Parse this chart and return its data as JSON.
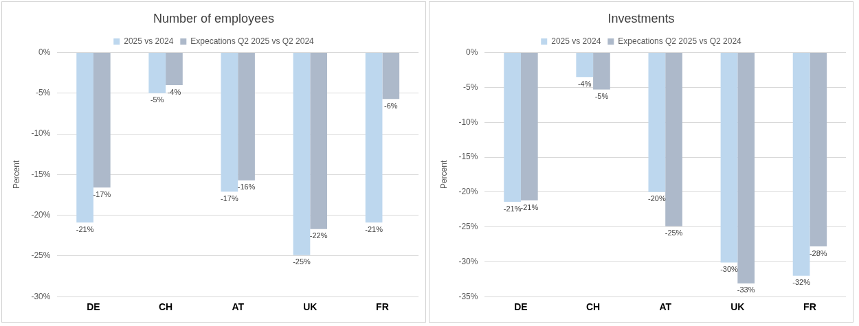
{
  "chart_data": [
    {
      "type": "bar",
      "title": "Number of employees",
      "ylabel": "Percent",
      "categories": [
        "DE",
        "CH",
        "AT",
        "UK",
        "FR"
      ],
      "series": [
        {
          "name": "2025 vs 2024",
          "color": "#bdd7ee",
          "values": [
            -20.9,
            -5.0,
            -17.1,
            -24.9,
            -20.9
          ],
          "value_labels": [
            "-21%",
            "-5%",
            "-17%",
            "-25%",
            "-21%"
          ]
        },
        {
          "name": "Expecations Q2 2025 vs Q2 2024",
          "color": "#adb9ca",
          "values": [
            -16.6,
            -4.0,
            -15.7,
            -21.7,
            -5.7
          ],
          "value_labels": [
            "-17%",
            "-4%",
            "-16%",
            "-22%",
            "-6%"
          ]
        }
      ],
      "ylim": [
        -30,
        0
      ],
      "yticks": [
        {
          "value": -30,
          "label": "-30%"
        },
        {
          "value": -25,
          "label": "-25%"
        },
        {
          "value": -20,
          "label": "-20%"
        },
        {
          "value": -15,
          "label": "-15%"
        },
        {
          "value": -10,
          "label": "-10%"
        },
        {
          "value": -5,
          "label": "-5%"
        },
        {
          "value": 0,
          "label": "0%"
        }
      ],
      "grid": "y",
      "legend": "top"
    },
    {
      "type": "bar",
      "title": "Investments",
      "ylabel": "Percent",
      "categories": [
        "DE",
        "CH",
        "AT",
        "UK",
        "FR"
      ],
      "series": [
        {
          "name": "2025 vs 2024",
          "color": "#bdd7ee",
          "values": [
            -21.4,
            -3.5,
            -20.0,
            -30.1,
            -32.0
          ],
          "value_labels": [
            "-21%",
            "-4%",
            "-20%",
            "-30%",
            "-32%"
          ]
        },
        {
          "name": "Expecations Q2 2025 vs Q2 2024",
          "color": "#adb9ca",
          "values": [
            -21.2,
            -5.3,
            -24.9,
            -33.1,
            -27.8
          ],
          "value_labels": [
            "-21%",
            "-5%",
            "-25%",
            "-33%",
            "-28%"
          ]
        }
      ],
      "ylim": [
        -35,
        0
      ],
      "yticks": [
        {
          "value": -35,
          "label": "-35%"
        },
        {
          "value": -30,
          "label": "-30%"
        },
        {
          "value": -25,
          "label": "-25%"
        },
        {
          "value": -20,
          "label": "-20%"
        },
        {
          "value": -15,
          "label": "-15%"
        },
        {
          "value": -10,
          "label": "-10%"
        },
        {
          "value": -5,
          "label": "-5%"
        },
        {
          "value": 0,
          "label": "0%"
        }
      ],
      "grid": "y",
      "legend": "top"
    }
  ]
}
